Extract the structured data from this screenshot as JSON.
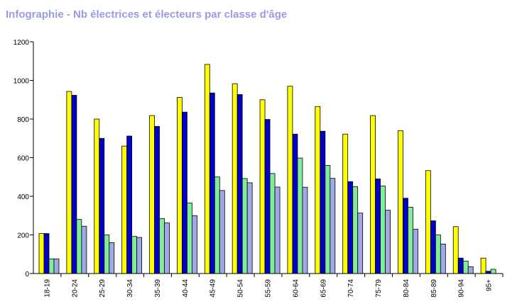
{
  "title": "Infographie - Nb électrices et électeurs par classe d'âge",
  "chart_data": {
    "type": "bar",
    "title": "Infographie - Nb électrices et électeurs par classe d'âge",
    "xlabel": "",
    "ylabel": "",
    "ylim": [
      0,
      1200
    ],
    "yticks": [
      "0",
      "200",
      "400",
      "600",
      "800",
      "1000",
      "1200"
    ],
    "grid": false,
    "legend": "none",
    "categories": [
      "18-19",
      "20-24",
      "25-29",
      "30-34",
      "35-39",
      "40-44",
      "45-49",
      "50-54",
      "55-59",
      "60-64",
      "65-69",
      "70-74",
      "75-79",
      "80-84",
      "85-89",
      "90-94",
      "95+"
    ],
    "series": [
      {
        "color": "#ffff00",
        "values": [
          207,
          943,
          800,
          660,
          818,
          912,
          1083,
          983,
          900,
          970,
          865,
          722,
          818,
          740,
          533,
          243,
          80
        ]
      },
      {
        "color": "#0000cc",
        "values": [
          207,
          923,
          700,
          712,
          762,
          836,
          935,
          927,
          798,
          722,
          737,
          476,
          490,
          390,
          273,
          80,
          12
        ]
      },
      {
        "color": "#80ee98",
        "values": [
          76,
          280,
          200,
          192,
          285,
          365,
          500,
          492,
          518,
          598,
          560,
          450,
          453,
          343,
          200,
          64,
          22
        ]
      },
      {
        "color": "#a0a8e8",
        "values": [
          76,
          245,
          160,
          187,
          262,
          300,
          430,
          470,
          448,
          447,
          493,
          313,
          328,
          230,
          153,
          35,
          0
        ]
      }
    ]
  }
}
